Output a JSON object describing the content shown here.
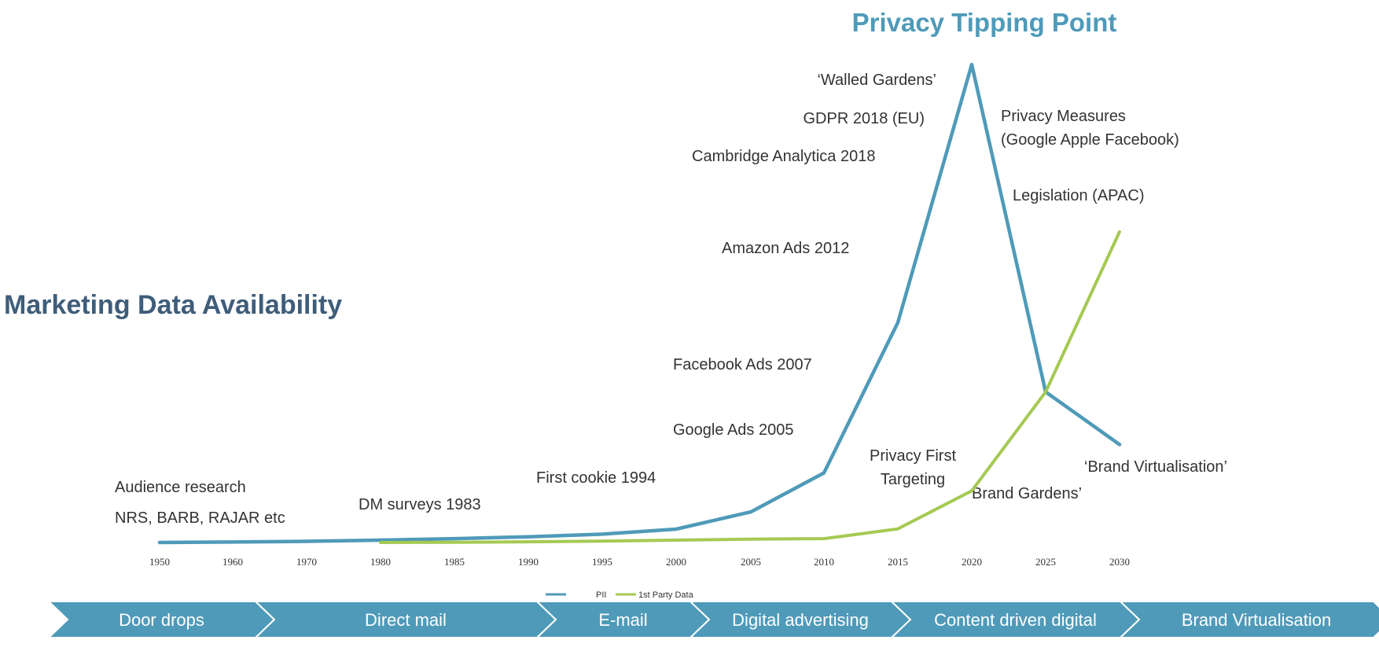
{
  "chart_data": {
    "type": "line",
    "title": "Marketing Data Availability",
    "subtitle": "Privacy Tipping Point",
    "x": [
      1950,
      1960,
      1970,
      1980,
      1985,
      1990,
      1995,
      2000,
      2005,
      2010,
      2015,
      2020,
      2025,
      2030
    ],
    "x_tick_labels": [
      "1950",
      "1960",
      "1970",
      "1980",
      "1985",
      "1990",
      "1995",
      "2000",
      "2005",
      "2010",
      "2015",
      "2020",
      "2025",
      "2030"
    ],
    "series": [
      {
        "name": "PII",
        "color": "#4f9ab9",
        "values": [
          0.0,
          0.2,
          0.5,
          1.0,
          1.6,
          2.4,
          3.5,
          5.6,
          12.8,
          29.1,
          92.0,
          200.0,
          63.0,
          41.0
        ]
      },
      {
        "name": "1st Party Data",
        "color": "#a5c952",
        "values": [
          null,
          null,
          null,
          0.0,
          0.1,
          0.3,
          0.6,
          1.0,
          1.4,
          1.6,
          5.7,
          21.6,
          63.0,
          130.0
        ]
      }
    ],
    "annotations": [
      "Audience research",
      "NRS, BARB, RAJAR etc",
      "DM surveys 1983",
      "First cookie 1994",
      "Google Ads 2005",
      "Facebook Ads 2007",
      "Amazon Ads 2012",
      "Cambridge Analytica 2018",
      "GDPR 2018 (EU)",
      "‘Walled Gardens’",
      "Privacy Measures",
      "(Google Apple Facebook)",
      "Legislation (APAC)",
      "Privacy First",
      "Targeting",
      "Brand Gardens’",
      "‘Brand Virtualisation’"
    ],
    "legend": {
      "placement": "bottom",
      "entries": [
        "PII",
        "1st Party Data"
      ]
    },
    "grid": false
  },
  "eras": [
    "Door drops",
    "Direct mail",
    "E-mail",
    "Digital advertising",
    "Content driven digital",
    "Brand Virtualisation"
  ],
  "colors": {
    "title": "#3f5d7a",
    "subtitle": "#4f9ab9",
    "band": "#4f9ab9"
  }
}
